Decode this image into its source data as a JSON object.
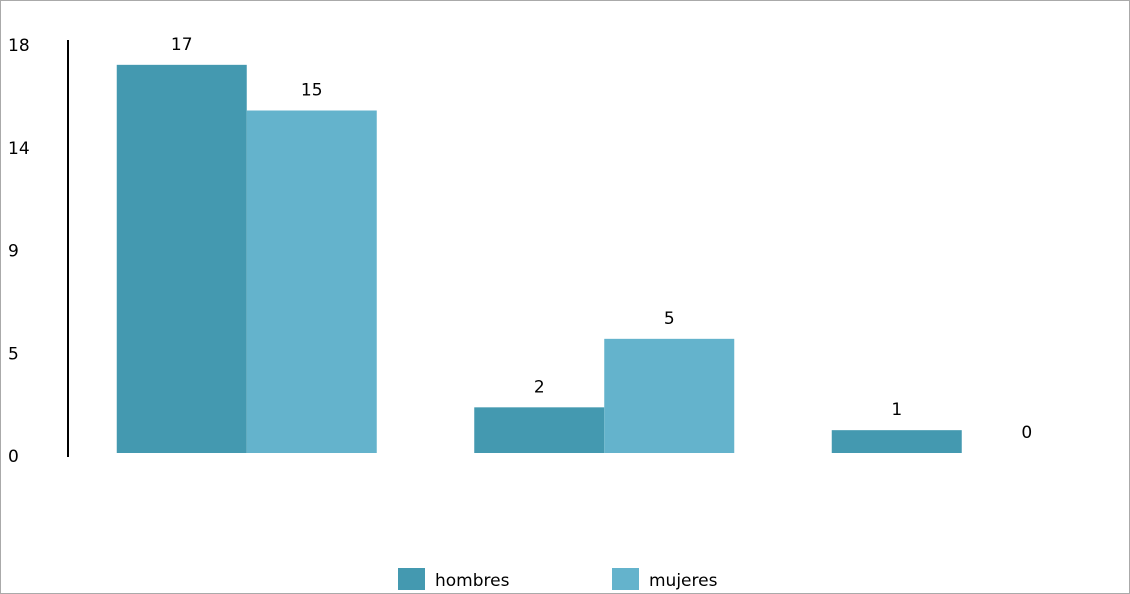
{
  "chart_data": {
    "type": "bar",
    "categories": [
      null,
      null,
      null
    ],
    "series": [
      {
        "name": "hombres",
        "color": "#4499b0",
        "values": [
          17,
          2,
          1
        ]
      },
      {
        "name": "mujeres",
        "color": "#64b3cc",
        "values": [
          15,
          5,
          0
        ]
      }
    ],
    "ylim": [
      0,
      18
    ],
    "yticks": [
      0,
      {
        "value": 4.5,
        "label": "5"
      },
      9,
      {
        "value": 13.5,
        "label": "14"
      },
      18
    ],
    "grid": false,
    "legend": "bottom"
  }
}
